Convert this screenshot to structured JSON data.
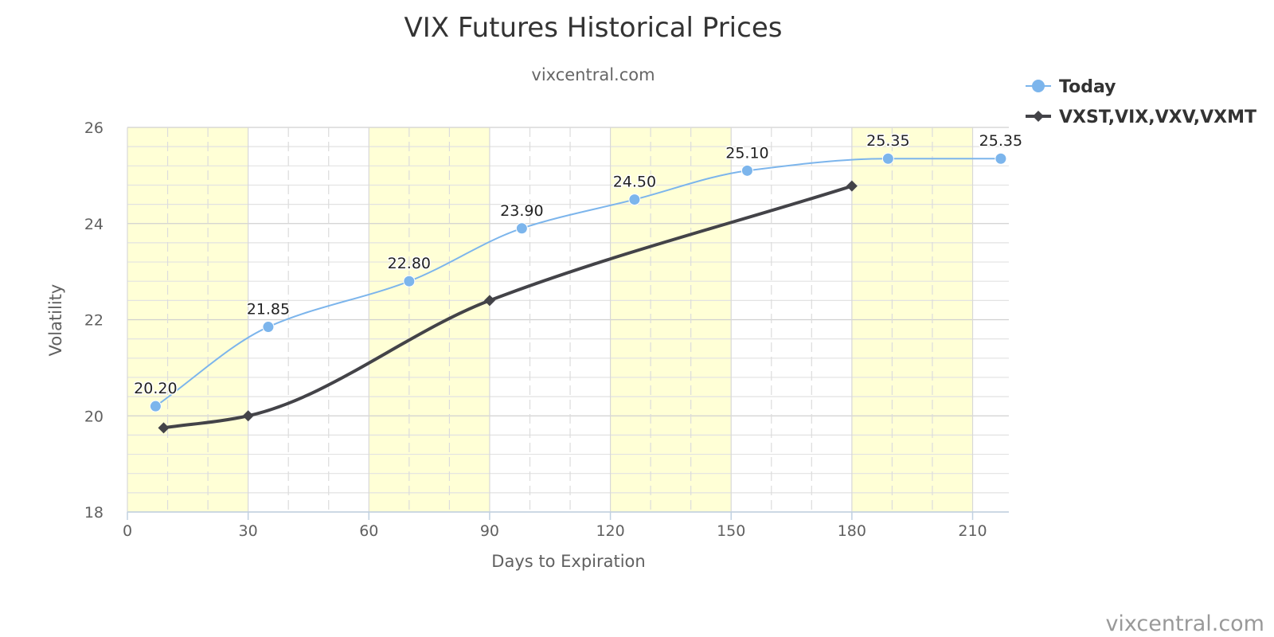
{
  "chart_data": {
    "type": "line",
    "title": "VIX Futures Historical Prices",
    "subtitle": "vixcentral.com",
    "xlabel": "Days to Expiration",
    "ylabel": "Volatility",
    "xlim": [
      0,
      219
    ],
    "ylim": [
      18,
      26
    ],
    "xticks": [
      0,
      30,
      60,
      90,
      120,
      150,
      180,
      210
    ],
    "yticks": [
      18,
      20,
      22,
      24,
      26
    ],
    "x_minor_step": 10,
    "y_minor_step": 0.4,
    "grid": true,
    "shaded_bands": [
      [
        0,
        30
      ],
      [
        60,
        90
      ],
      [
        120,
        150
      ],
      [
        180,
        210
      ]
    ],
    "legend_position": "top-right",
    "series": [
      {
        "name": "Today",
        "color": "#7cb5ec",
        "marker": "circle",
        "show_labels": true,
        "x": [
          7,
          35,
          70,
          98,
          126,
          154,
          189,
          217
        ],
        "values": [
          20.2,
          21.85,
          22.8,
          23.9,
          24.5,
          25.1,
          25.35,
          25.35
        ],
        "labels": [
          "20.20",
          "21.85",
          "22.80",
          "23.90",
          "24.50",
          "25.10",
          "25.35",
          "25.35"
        ]
      },
      {
        "name": "VXST,VIX,VXV,VXMT",
        "color": "#434348",
        "marker": "diamond",
        "show_labels": false,
        "x": [
          9,
          30,
          90,
          180
        ],
        "values": [
          19.75,
          20.0,
          22.4,
          24.78
        ]
      }
    ]
  },
  "credit": "vixcentral.com"
}
